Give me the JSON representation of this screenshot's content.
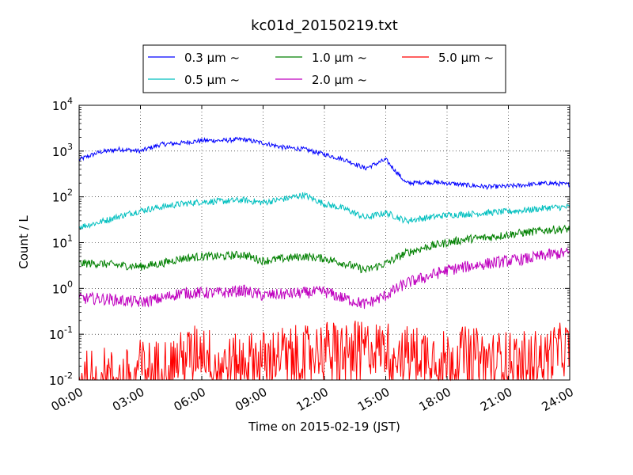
{
  "chart_data": {
    "type": "line",
    "title": "kc01d_20150219.txt",
    "xlabel": "Time on 2015-02-19 (JST)",
    "ylabel": "Count / L",
    "yscale": "log",
    "ylim": [
      0.01,
      10000
    ],
    "xlim_hours": [
      0,
      24
    ],
    "x_ticks": [
      "00:00",
      "03:00",
      "06:00",
      "09:00",
      "12:00",
      "15:00",
      "18:00",
      "21:00",
      "24:00"
    ],
    "y_ticks": [
      {
        "base": "10",
        "exp": "-2",
        "value": 0.01
      },
      {
        "base": "10",
        "exp": "-1",
        "value": 0.1
      },
      {
        "base": "10",
        "exp": "0",
        "value": 1
      },
      {
        "base": "10",
        "exp": "1",
        "value": 10
      },
      {
        "base": "10",
        "exp": "2",
        "value": 100
      },
      {
        "base": "10",
        "exp": "3",
        "value": 1000
      },
      {
        "base": "10",
        "exp": "4",
        "value": 10000
      }
    ],
    "grid": true,
    "legend_position": "top-center",
    "x_hours": [
      0,
      1,
      2,
      3,
      4,
      5,
      6,
      7,
      8,
      9,
      10,
      11,
      12,
      13,
      14,
      15,
      16,
      17,
      18,
      19,
      20,
      21,
      22,
      23,
      24
    ],
    "series": [
      {
        "name": "0.3 μm ~",
        "color": "#0000ff",
        "values": [
          650,
          950,
          1100,
          1000,
          1400,
          1500,
          1700,
          1700,
          1800,
          1500,
          1200,
          1100,
          850,
          650,
          420,
          650,
          200,
          210,
          200,
          180,
          165,
          170,
          185,
          200,
          185
        ]
      },
      {
        "name": "0.5 μm ~",
        "color": "#00bfbf",
        "values": [
          22,
          28,
          38,
          50,
          60,
          70,
          78,
          80,
          85,
          75,
          90,
          110,
          70,
          55,
          35,
          45,
          30,
          35,
          40,
          42,
          45,
          48,
          52,
          58,
          60
        ]
      },
      {
        "name": "1.0 μm ~",
        "color": "#008000",
        "values": [
          3.5,
          3.5,
          3.2,
          3.0,
          3.5,
          4.5,
          5.0,
          5.0,
          5.5,
          4.0,
          4.5,
          5.0,
          4.5,
          3.5,
          2.5,
          3.5,
          6.0,
          8.0,
          10.0,
          12.0,
          13.0,
          15.0,
          17.0,
          19.0,
          20.0
        ]
      },
      {
        "name": "2.0 μm ~",
        "color": "#bf00bf",
        "values": [
          0.6,
          0.6,
          0.55,
          0.5,
          0.6,
          0.8,
          0.8,
          0.8,
          0.9,
          0.7,
          0.75,
          0.8,
          0.85,
          0.6,
          0.45,
          0.7,
          1.3,
          1.8,
          2.5,
          3.0,
          3.5,
          4.0,
          4.5,
          5.5,
          6.0
        ]
      },
      {
        "name": "5.0 μm ~",
        "color": "#ff0000",
        "values": [
          0.01,
          0.015,
          0.01,
          0.02,
          0.02,
          0.03,
          0.05,
          0.02,
          0.03,
          0.03,
          0.04,
          0.04,
          0.05,
          0.05,
          0.05,
          0.05,
          0.04,
          0.04,
          0.03,
          0.04,
          0.03,
          0.03,
          0.03,
          0.04,
          0.05
        ]
      }
    ]
  }
}
